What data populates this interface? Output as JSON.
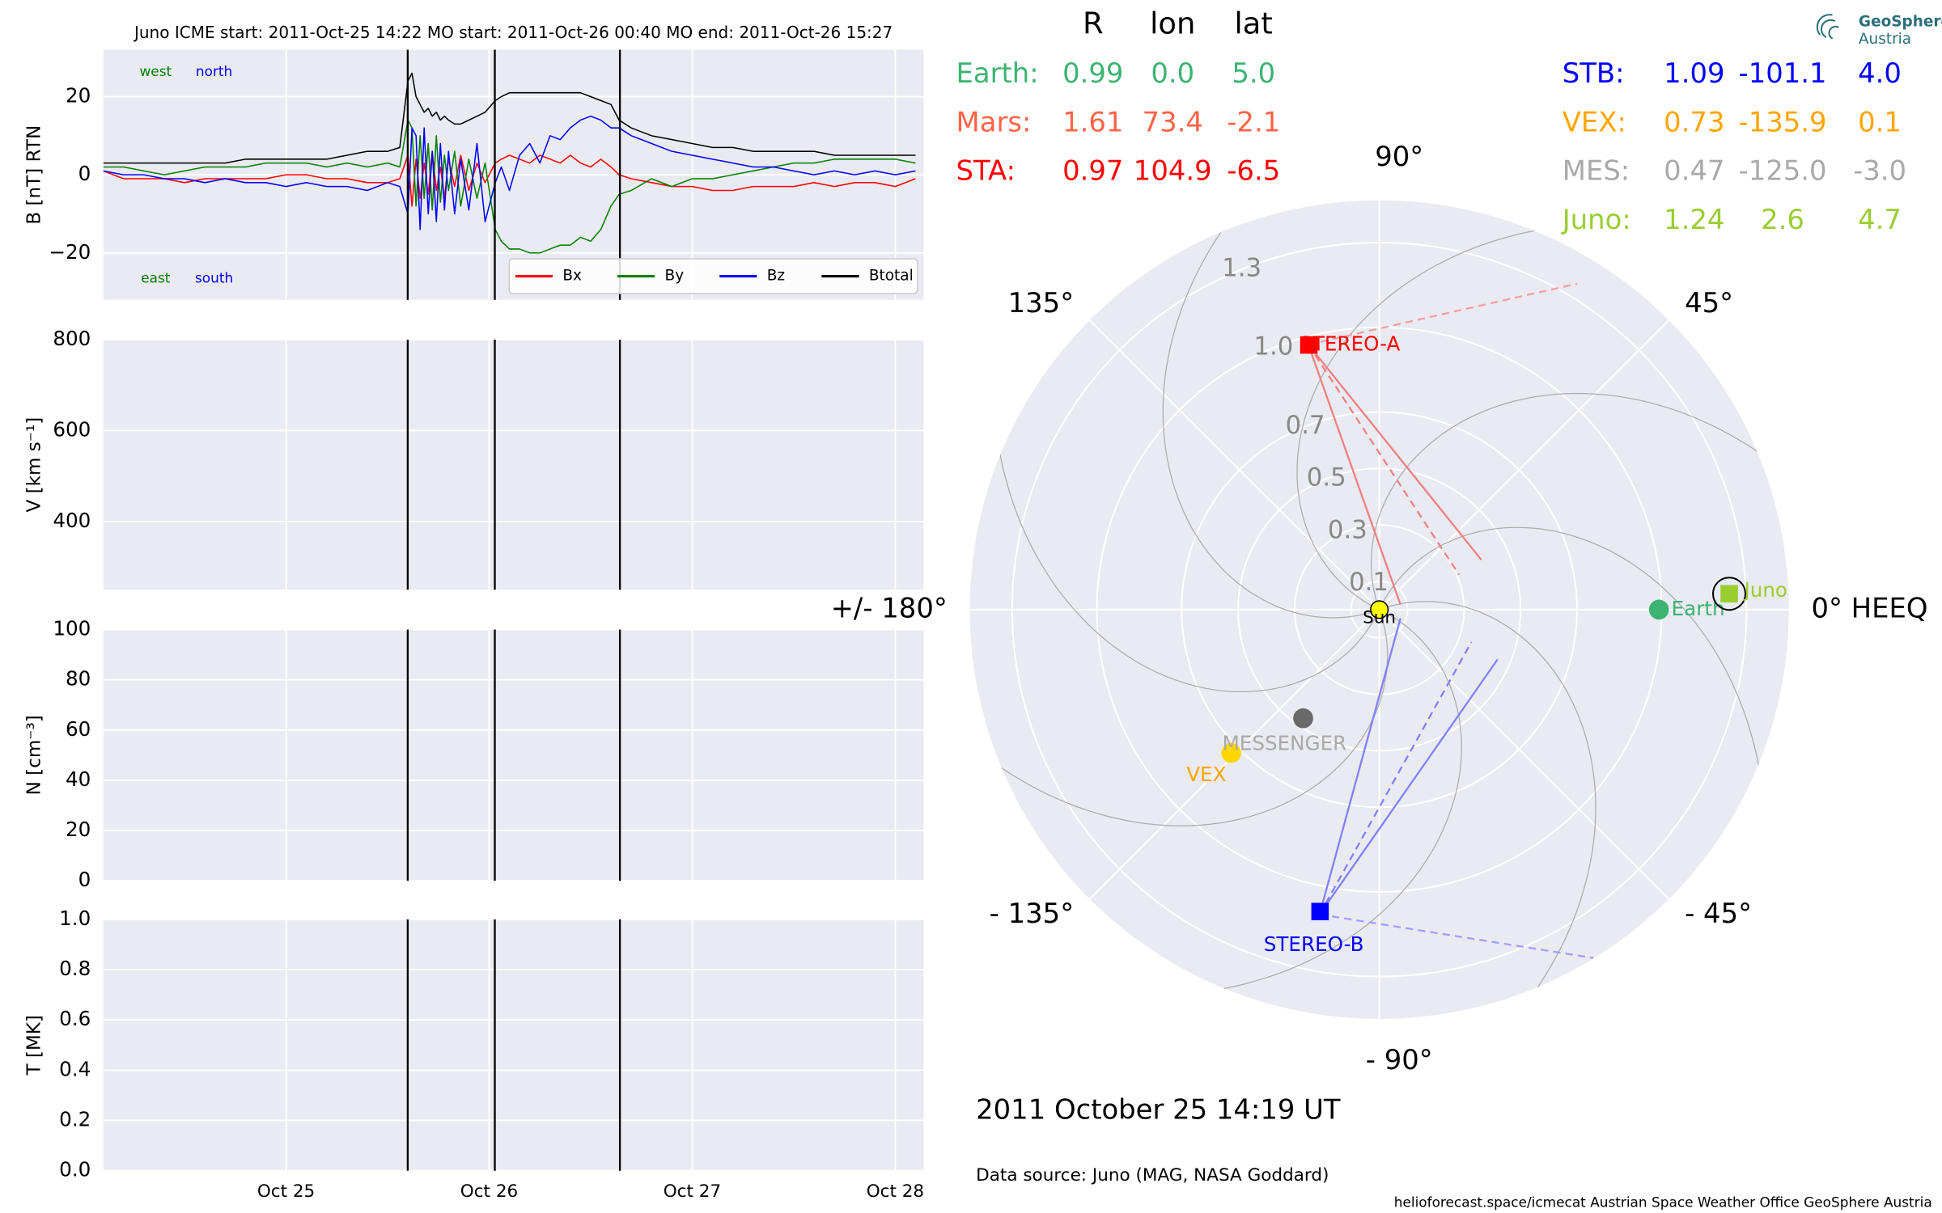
{
  "chart_data": [
    {
      "type": "line",
      "title": "Juno    ICME start: 2011-Oct-25 14:22   MO start: 2011-Oct-26 00:40   MO end: 2011-Oct-26 15:27",
      "ylabel": "B [nT] RTN",
      "xlim": [
        24.1,
        28.14
      ],
      "xticks": [
        {
          "value": 25,
          "label": "Oct 25"
        },
        {
          "value": 26,
          "label": "Oct 26"
        },
        {
          "value": 27,
          "label": "Oct 27"
        },
        {
          "value": 28,
          "label": "Oct 28"
        }
      ],
      "ylim": [
        -32,
        32
      ],
      "yticks": [
        {
          "value": -20,
          "label": "−20"
        },
        0,
        20
      ],
      "grid": true,
      "legend": "lower right",
      "events": [
        25.599,
        26.028,
        26.644
      ],
      "annotations": [
        {
          "text": "west",
          "color": "#008000"
        },
        {
          "text": "north",
          "color": "#0000ff"
        },
        {
          "text": "east",
          "color": "#008000"
        },
        {
          "text": "south",
          "color": "#0000ff"
        }
      ],
      "x": [
        24.1,
        24.2,
        24.3,
        24.4,
        24.5,
        24.6,
        24.7,
        24.8,
        24.9,
        25.0,
        25.1,
        25.2,
        25.3,
        25.4,
        25.5,
        25.56,
        25.6,
        25.62,
        25.64,
        25.66,
        25.68,
        25.7,
        25.72,
        25.74,
        25.76,
        25.78,
        25.8,
        25.83,
        25.86,
        25.9,
        25.94,
        25.98,
        26.03,
        26.06,
        26.1,
        26.15,
        26.2,
        26.25,
        26.3,
        26.35,
        26.4,
        26.45,
        26.5,
        26.55,
        26.6,
        26.64,
        26.7,
        26.8,
        26.9,
        27.0,
        27.1,
        27.2,
        27.3,
        27.4,
        27.5,
        27.6,
        27.7,
        27.8,
        27.9,
        28.0,
        28.1
      ],
      "series": [
        {
          "name": "Bx",
          "color": "#ff0000",
          "values": [
            1,
            -1,
            -1,
            -1,
            -2,
            -1,
            -1,
            -1,
            -1,
            0,
            0,
            -1,
            -1,
            -2,
            -2,
            -1,
            5,
            -8,
            4,
            -6,
            3,
            -5,
            6,
            -4,
            2,
            -6,
            4,
            -3,
            5,
            -4,
            3,
            -2,
            3,
            4,
            5,
            4,
            3,
            5,
            4,
            3,
            5,
            3,
            2,
            4,
            2,
            0,
            -1,
            -2,
            -3,
            -3,
            -4,
            -4,
            -3,
            -3,
            -3,
            -2,
            -3,
            -2,
            -2,
            -3,
            -1
          ]
        },
        {
          "name": "By",
          "color": "#008000",
          "values": [
            2,
            2,
            1,
            0,
            1,
            2,
            2,
            2,
            3,
            3,
            3,
            2,
            3,
            2,
            3,
            2,
            14,
            12,
            -8,
            10,
            -6,
            8,
            -9,
            10,
            -7,
            5,
            -4,
            6,
            -8,
            4,
            -6,
            3,
            -14,
            -17,
            -19,
            -19,
            -20,
            -20,
            -19,
            -18,
            -18,
            -16,
            -17,
            -14,
            -8,
            -5,
            -4,
            -1,
            -3,
            -1,
            -1,
            0,
            1,
            2,
            3,
            3,
            4,
            4,
            4,
            4,
            3
          ]
        },
        {
          "name": "Bz",
          "color": "#0000ff",
          "values": [
            1,
            0,
            0,
            -1,
            -1,
            -2,
            -1,
            -2,
            -2,
            -3,
            -2,
            -3,
            -3,
            -4,
            -2,
            -3,
            -10,
            12,
            10,
            -14,
            12,
            -10,
            6,
            -12,
            8,
            -9,
            6,
            -10,
            4,
            -9,
            8,
            -12,
            -2,
            2,
            -4,
            5,
            8,
            3,
            10,
            9,
            12,
            14,
            15,
            14,
            12,
            12,
            10,
            8,
            6,
            5,
            4,
            3,
            2,
            2,
            1,
            0,
            1,
            0,
            1,
            0,
            1
          ]
        },
        {
          "name": "Btotal",
          "color": "#000000",
          "values": [
            3,
            3,
            3,
            3,
            3,
            3,
            3,
            4,
            4,
            4,
            4,
            4,
            5,
            6,
            6,
            7,
            24,
            26,
            20,
            18,
            16,
            17,
            15,
            16,
            14,
            15,
            14,
            13,
            13,
            14,
            15,
            16,
            19,
            20,
            21,
            21,
            21,
            21,
            21,
            21,
            21,
            21,
            20,
            19,
            18,
            14,
            12,
            10,
            9,
            8,
            7,
            7,
            6,
            6,
            6,
            6,
            5,
            5,
            5,
            5,
            5
          ]
        }
      ]
    },
    {
      "type": "line",
      "ylabel": "V [km s⁻¹]",
      "xlim": [
        24.1,
        28.14
      ],
      "xticks": [
        {
          "value": 25,
          "label": "Oct 25"
        },
        {
          "value": 26,
          "label": "Oct 26"
        },
        {
          "value": 27,
          "label": "Oct 27"
        },
        {
          "value": 28,
          "label": "Oct 28"
        }
      ],
      "ylim": [
        250,
        800
      ],
      "yticks": [
        400,
        600,
        800
      ],
      "grid": true,
      "events": [
        25.599,
        26.028,
        26.644
      ],
      "series": []
    },
    {
      "type": "line",
      "ylabel": "N [cm⁻³]",
      "xlim": [
        24.1,
        28.14
      ],
      "xticks": [
        {
          "value": 25,
          "label": "Oct 25"
        },
        {
          "value": 26,
          "label": "Oct 26"
        },
        {
          "value": 27,
          "label": "Oct 27"
        },
        {
          "value": 28,
          "label": "Oct 28"
        }
      ],
      "ylim": [
        0,
        100
      ],
      "yticks": [
        0,
        20,
        40,
        60,
        80,
        100
      ],
      "grid": true,
      "events": [
        25.599,
        26.028,
        26.644
      ],
      "series": []
    },
    {
      "type": "line",
      "ylabel": "T [MK]",
      "xlim": [
        24.1,
        28.14
      ],
      "xticks": [
        {
          "value": 25,
          "label": "Oct 25"
        },
        {
          "value": 26,
          "label": "Oct 26"
        },
        {
          "value": 27,
          "label": "Oct 27"
        },
        {
          "value": 28,
          "label": "Oct 28"
        }
      ],
      "ylim": [
        0,
        1
      ],
      "yticks": [
        {
          "value": 0,
          "label": "0.0"
        },
        0.2,
        0.4,
        0.6,
        0.8,
        {
          "value": 1,
          "label": "1.0"
        }
      ],
      "grid": true,
      "events": [
        25.599,
        26.028,
        26.644
      ],
      "series": []
    },
    {
      "type": "polar",
      "rlim": [
        0,
        1.45
      ],
      "rticks": [
        0.1,
        0.3,
        0.5,
        0.7,
        {
          "value": 1,
          "label": "1.0"
        },
        1.3
      ],
      "thetaticks": [
        {
          "value": 0,
          "label": "0° HEEQ"
        },
        {
          "value": 45,
          "label": "45°"
        },
        {
          "value": 90,
          "label": "90°"
        },
        {
          "value": 135,
          "label": "135°"
        },
        {
          "value": 180,
          "label": "+/- 180°"
        },
        {
          "value": -135,
          "label": "- 135°"
        },
        {
          "value": -90,
          "label": "- 90°"
        },
        {
          "value": -45,
          "label": "- 45°"
        }
      ],
      "center_label": "Sun",
      "columns": [
        "R",
        "lon",
        "lat"
      ],
      "bodies": [
        {
          "label": "Earth:",
          "plot_label": "Earth",
          "color": "#3cb371",
          "marker": "circle",
          "r": 0.99,
          "lon": 0,
          "lat": 5,
          "value_labels": {
            "lon": "0.0",
            "lat": "5.0"
          }
        },
        {
          "label": "Mars:",
          "color": "#ff6347",
          "marker": "circle",
          "r": 1.61,
          "lon": 73.4,
          "lat": -2.1
        },
        {
          "label": "STA:",
          "plot_label": "STEREO-A",
          "color": "#ff0000",
          "marker": "square",
          "r": 0.97,
          "lon": 104.9,
          "lat": -6.5
        },
        {
          "label": "STB:",
          "plot_label": "STEREO-B",
          "color": "#0000ff",
          "marker": "square",
          "r": 1.09,
          "lon": -101.1,
          "lat": 4,
          "value_labels": {
            "lat": "4.0"
          }
        },
        {
          "label": "VEX:",
          "plot_label": "VEX",
          "color": "#ffa500",
          "marker_color": "#ffd700",
          "marker": "circle",
          "r": 0.73,
          "lon": -135.9,
          "lat": 0.1
        },
        {
          "label": "MES:",
          "plot_label": "MESSENGER",
          "color": "#a9a9a9",
          "marker_color": "#696969",
          "marker": "circle",
          "r": 0.47,
          "lon": -125,
          "lat": -3,
          "value_labels": {
            "lon": "-125.0",
            "lat": "-3.0"
          }
        },
        {
          "label": "Juno:",
          "plot_label": "Juno",
          "color": "#9acd32",
          "marker": "square",
          "r": 1.24,
          "lon": 2.6,
          "lat": 4.7
        }
      ]
    }
  ],
  "date": "2011 October 25  14:19 UT",
  "source": "Data source: Juno (MAG, NASA Goddard)",
  "footer": "helioforecast.space/icmecat   Austrian Space Weather Office   GeoSphere Austria",
  "logo": [
    "GeoSphere",
    "Austria"
  ]
}
